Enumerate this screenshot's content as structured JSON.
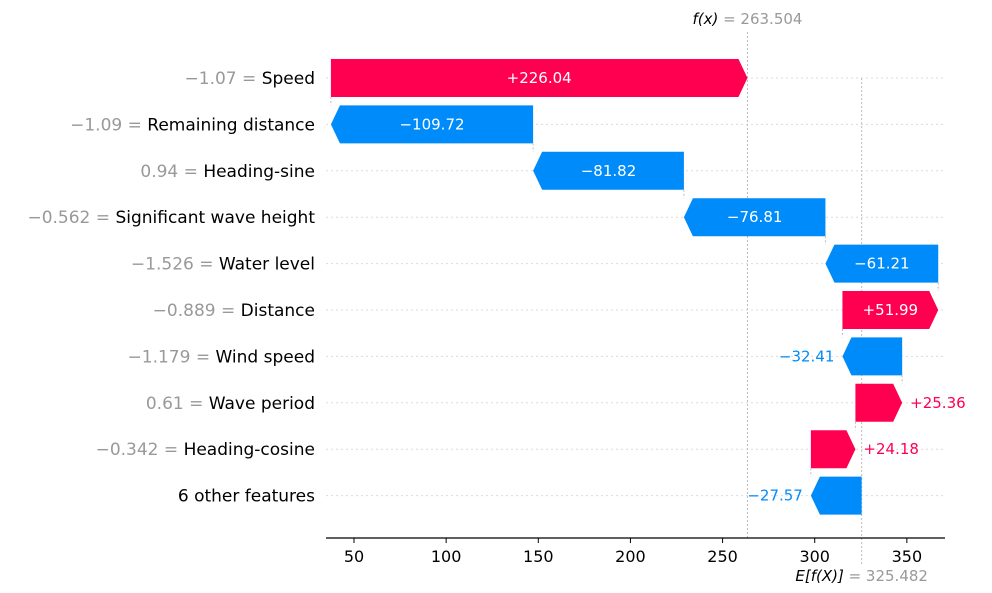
{
  "chart_data": {
    "type": "waterfall",
    "fx_label": "f(x)",
    "fx_value_text": "263.504",
    "fx_value": 263.504,
    "ex_label": "E[f(X)]",
    "ex_value_text": "325.482",
    "ex_value": 325.482,
    "xlim": [
      34.8,
      370.7
    ],
    "xticks": [
      50,
      100,
      150,
      200,
      250,
      300,
      350
    ],
    "xtick_labels": [
      "50",
      "100",
      "150",
      "200",
      "250",
      "300",
      "350"
    ],
    "features": [
      {
        "value": "−1.07",
        "name": "Speed",
        "contribution": 226.04,
        "label": "+226.04"
      },
      {
        "value": "−1.09",
        "name": "Remaining distance",
        "contribution": -109.72,
        "label": "−109.72"
      },
      {
        "value": "0.94",
        "name": "Heading-sine",
        "contribution": -81.82,
        "label": "−81.82"
      },
      {
        "value": "−0.562",
        "name": "Significant wave height",
        "contribution": -76.81,
        "label": "−76.81"
      },
      {
        "value": "−1.526",
        "name": "Water level",
        "contribution": -61.21,
        "label": "−61.21"
      },
      {
        "value": "−0.889",
        "name": "Distance",
        "contribution": 51.99,
        "label": "+51.99"
      },
      {
        "value": "−1.179",
        "name": "Wind speed",
        "contribution": -32.41,
        "label": "−32.41"
      },
      {
        "value": "0.61",
        "name": "Wave period",
        "contribution": 25.36,
        "label": "+25.36"
      },
      {
        "value": "−0.342",
        "name": "Heading-cosine",
        "contribution": 24.18,
        "label": "+24.18"
      },
      {
        "value": "",
        "name": "6 other features",
        "contribution": -27.57,
        "label": "−27.57"
      }
    ],
    "colors": {
      "positive": "#ff0051",
      "negative": "#008bfb",
      "axis": "#000000",
      "grid": "#cccccc",
      "muted": "#999999"
    }
  }
}
